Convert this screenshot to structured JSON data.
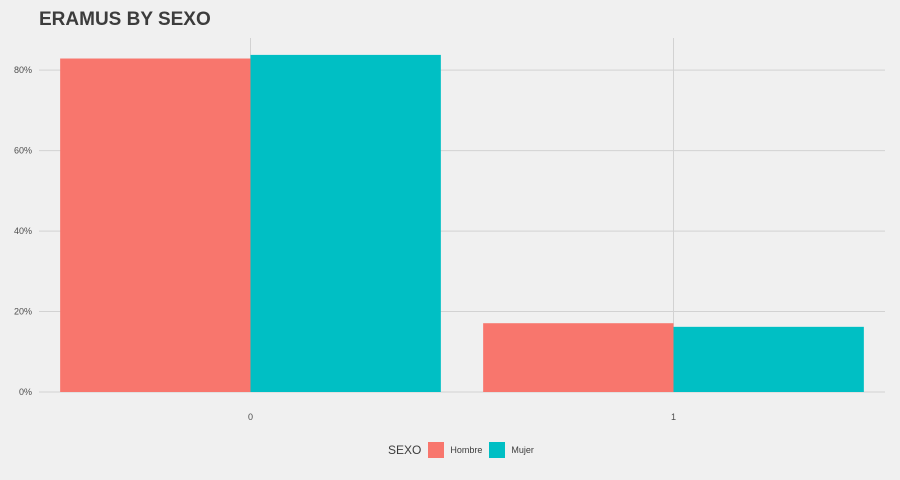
{
  "chart_data": {
    "type": "bar",
    "title": "ERAMUS BY SEXO",
    "categories": [
      "0",
      "1"
    ],
    "series": [
      {
        "name": "Hombre",
        "color": "#f8766d",
        "values": [
          0.829,
          0.171
        ]
      },
      {
        "name": "Mujer",
        "color": "#00bfc4",
        "values": [
          0.838,
          0.162
        ]
      }
    ],
    "xlabel": "",
    "ylabel": "",
    "ylim": [
      0,
      0.88
    ],
    "yticks": [
      0,
      0.2,
      0.4,
      0.6,
      0.8
    ],
    "ytick_labels": [
      "0%",
      "20%",
      "40%",
      "60%",
      "80%"
    ],
    "grid": true,
    "legend": {
      "title": "SEXO",
      "position": "bottom"
    }
  }
}
